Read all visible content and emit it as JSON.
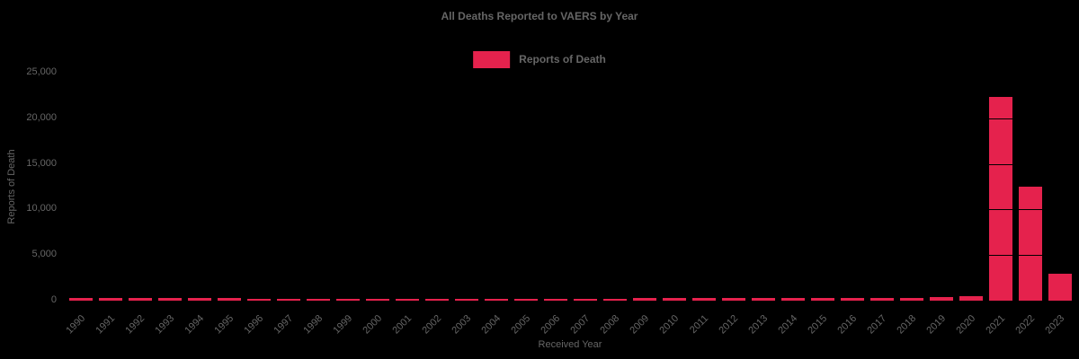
{
  "chart_data": {
    "type": "bar",
    "title": "All Deaths Reported to VAERS by Year",
    "xlabel": "Received Year",
    "ylabel": "Reports of Death",
    "legend_label": "Reports of Death",
    "legend_position": "top-center",
    "grid": true,
    "ylim": [
      0,
      25000
    ],
    "y_ticks": [
      0,
      5000,
      10000,
      15000,
      20000,
      25000
    ],
    "y_tick_labels": [
      "0",
      "5,000",
      "10,000",
      "15,000",
      "20,000",
      "25,000"
    ],
    "categories": [
      "1990",
      "1991",
      "1992",
      "1993",
      "1994",
      "1995",
      "1996",
      "1997",
      "1998",
      "1999",
      "2000",
      "2001",
      "2002",
      "2003",
      "2004",
      "2005",
      "2006",
      "2007",
      "2008",
      "2009",
      "2010",
      "2011",
      "2012",
      "2013",
      "2014",
      "2015",
      "2016",
      "2017",
      "2018",
      "2019",
      "2020",
      "2021",
      "2022",
      "2023"
    ],
    "values": [
      260,
      290,
      270,
      280,
      260,
      250,
      230,
      230,
      230,
      210,
      200,
      220,
      200,
      230,
      210,
      220,
      210,
      210,
      230,
      260,
      290,
      260,
      250,
      260,
      260,
      270,
      270,
      300,
      340,
      420,
      460,
      22300,
      12500,
      2950
    ],
    "series_name": "Reports of Death",
    "colors": {
      "background": "#000000",
      "bar": "#e5224d",
      "text": "#666666"
    }
  }
}
